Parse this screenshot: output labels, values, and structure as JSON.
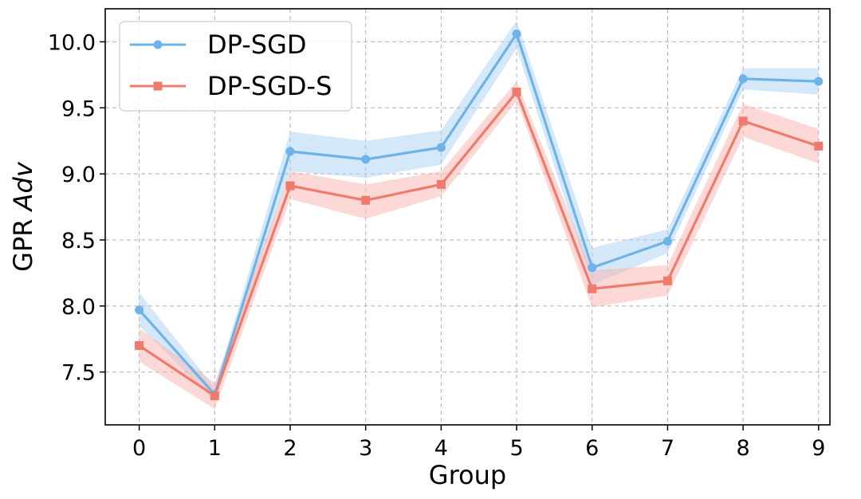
{
  "chart_data": {
    "type": "line",
    "title": "",
    "xlabel": "Group",
    "ylabel_prefix": "GPR ",
    "ylabel_italic": "Adv",
    "x": [
      0,
      1,
      2,
      3,
      4,
      5,
      6,
      7,
      8,
      9
    ],
    "xlim": [
      -0.45,
      9.15
    ],
    "ylim": [
      7.1,
      10.25
    ],
    "yticks": [
      7.5,
      8.0,
      8.5,
      9.0,
      9.5,
      10.0
    ],
    "ytick_labels": [
      "7.5",
      "8.0",
      "8.5",
      "9.0",
      "9.5",
      "10.0"
    ],
    "xtick_labels": [
      "0",
      "1",
      "2",
      "3",
      "4",
      "5",
      "6",
      "7",
      "8",
      "9"
    ],
    "grid": true,
    "legend_position": "top-left",
    "series": [
      {
        "name": "DP-SGD",
        "marker": "circle",
        "color": "#6cb4e8",
        "band_color": "#a9d2f5",
        "values": [
          7.97,
          7.33,
          9.17,
          9.11,
          9.2,
          10.06,
          8.29,
          8.49,
          9.72,
          9.7
        ],
        "lower": [
          7.85,
          7.28,
          9.02,
          8.97,
          9.07,
          9.95,
          8.16,
          8.4,
          9.64,
          9.6
        ],
        "upper": [
          8.1,
          7.38,
          9.32,
          9.25,
          9.33,
          10.16,
          8.44,
          8.58,
          9.8,
          9.8
        ]
      },
      {
        "name": "DP-SGD-S",
        "marker": "square",
        "color": "#f07a6c",
        "band_color": "#f9b4b0",
        "values": [
          7.7,
          7.32,
          8.91,
          8.8,
          8.92,
          9.62,
          8.13,
          8.19,
          9.4,
          9.21
        ],
        "lower": [
          7.58,
          7.22,
          8.81,
          8.66,
          8.83,
          9.55,
          7.99,
          8.08,
          9.28,
          9.08
        ],
        "upper": [
          7.83,
          7.42,
          9.02,
          8.92,
          9.02,
          9.7,
          8.27,
          8.31,
          9.53,
          9.34
        ]
      }
    ]
  }
}
